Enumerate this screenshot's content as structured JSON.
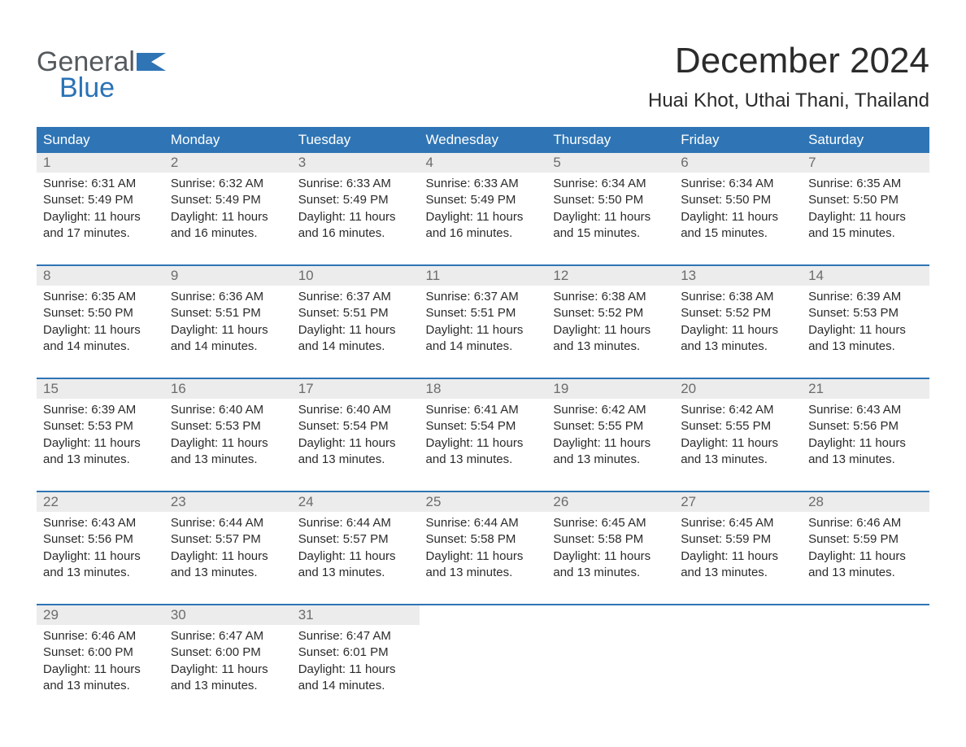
{
  "brand": {
    "general": "General",
    "blue": "Blue",
    "flag_color": "#2f75b5"
  },
  "title": {
    "month": "December 2024",
    "location": "Huai Khot, Uthai Thani, Thailand"
  },
  "colors": {
    "header_bg": "#2f75b5",
    "header_text": "#ffffff",
    "daynum_bg": "#ececec",
    "daynum_text": "#6c6c6c",
    "body_text": "#2b2b2b",
    "page_bg": "#ffffff",
    "week_border": "#2f75b5"
  },
  "day_headers": [
    "Sunday",
    "Monday",
    "Tuesday",
    "Wednesday",
    "Thursday",
    "Friday",
    "Saturday"
  ],
  "weeks": [
    [
      {
        "num": "1",
        "sunrise": "Sunrise: 6:31 AM",
        "sunset": "Sunset: 5:49 PM",
        "d1": "Daylight: 11 hours",
        "d2": "and 17 minutes."
      },
      {
        "num": "2",
        "sunrise": "Sunrise: 6:32 AM",
        "sunset": "Sunset: 5:49 PM",
        "d1": "Daylight: 11 hours",
        "d2": "and 16 minutes."
      },
      {
        "num": "3",
        "sunrise": "Sunrise: 6:33 AM",
        "sunset": "Sunset: 5:49 PM",
        "d1": "Daylight: 11 hours",
        "d2": "and 16 minutes."
      },
      {
        "num": "4",
        "sunrise": "Sunrise: 6:33 AM",
        "sunset": "Sunset: 5:49 PM",
        "d1": "Daylight: 11 hours",
        "d2": "and 16 minutes."
      },
      {
        "num": "5",
        "sunrise": "Sunrise: 6:34 AM",
        "sunset": "Sunset: 5:50 PM",
        "d1": "Daylight: 11 hours",
        "d2": "and 15 minutes."
      },
      {
        "num": "6",
        "sunrise": "Sunrise: 6:34 AM",
        "sunset": "Sunset: 5:50 PM",
        "d1": "Daylight: 11 hours",
        "d2": "and 15 minutes."
      },
      {
        "num": "7",
        "sunrise": "Sunrise: 6:35 AM",
        "sunset": "Sunset: 5:50 PM",
        "d1": "Daylight: 11 hours",
        "d2": "and 15 minutes."
      }
    ],
    [
      {
        "num": "8",
        "sunrise": "Sunrise: 6:35 AM",
        "sunset": "Sunset: 5:50 PM",
        "d1": "Daylight: 11 hours",
        "d2": "and 14 minutes."
      },
      {
        "num": "9",
        "sunrise": "Sunrise: 6:36 AM",
        "sunset": "Sunset: 5:51 PM",
        "d1": "Daylight: 11 hours",
        "d2": "and 14 minutes."
      },
      {
        "num": "10",
        "sunrise": "Sunrise: 6:37 AM",
        "sunset": "Sunset: 5:51 PM",
        "d1": "Daylight: 11 hours",
        "d2": "and 14 minutes."
      },
      {
        "num": "11",
        "sunrise": "Sunrise: 6:37 AM",
        "sunset": "Sunset: 5:51 PM",
        "d1": "Daylight: 11 hours",
        "d2": "and 14 minutes."
      },
      {
        "num": "12",
        "sunrise": "Sunrise: 6:38 AM",
        "sunset": "Sunset: 5:52 PM",
        "d1": "Daylight: 11 hours",
        "d2": "and 13 minutes."
      },
      {
        "num": "13",
        "sunrise": "Sunrise: 6:38 AM",
        "sunset": "Sunset: 5:52 PM",
        "d1": "Daylight: 11 hours",
        "d2": "and 13 minutes."
      },
      {
        "num": "14",
        "sunrise": "Sunrise: 6:39 AM",
        "sunset": "Sunset: 5:53 PM",
        "d1": "Daylight: 11 hours",
        "d2": "and 13 minutes."
      }
    ],
    [
      {
        "num": "15",
        "sunrise": "Sunrise: 6:39 AM",
        "sunset": "Sunset: 5:53 PM",
        "d1": "Daylight: 11 hours",
        "d2": "and 13 minutes."
      },
      {
        "num": "16",
        "sunrise": "Sunrise: 6:40 AM",
        "sunset": "Sunset: 5:53 PM",
        "d1": "Daylight: 11 hours",
        "d2": "and 13 minutes."
      },
      {
        "num": "17",
        "sunrise": "Sunrise: 6:40 AM",
        "sunset": "Sunset: 5:54 PM",
        "d1": "Daylight: 11 hours",
        "d2": "and 13 minutes."
      },
      {
        "num": "18",
        "sunrise": "Sunrise: 6:41 AM",
        "sunset": "Sunset: 5:54 PM",
        "d1": "Daylight: 11 hours",
        "d2": "and 13 minutes."
      },
      {
        "num": "19",
        "sunrise": "Sunrise: 6:42 AM",
        "sunset": "Sunset: 5:55 PM",
        "d1": "Daylight: 11 hours",
        "d2": "and 13 minutes."
      },
      {
        "num": "20",
        "sunrise": "Sunrise: 6:42 AM",
        "sunset": "Sunset: 5:55 PM",
        "d1": "Daylight: 11 hours",
        "d2": "and 13 minutes."
      },
      {
        "num": "21",
        "sunrise": "Sunrise: 6:43 AM",
        "sunset": "Sunset: 5:56 PM",
        "d1": "Daylight: 11 hours",
        "d2": "and 13 minutes."
      }
    ],
    [
      {
        "num": "22",
        "sunrise": "Sunrise: 6:43 AM",
        "sunset": "Sunset: 5:56 PM",
        "d1": "Daylight: 11 hours",
        "d2": "and 13 minutes."
      },
      {
        "num": "23",
        "sunrise": "Sunrise: 6:44 AM",
        "sunset": "Sunset: 5:57 PM",
        "d1": "Daylight: 11 hours",
        "d2": "and 13 minutes."
      },
      {
        "num": "24",
        "sunrise": "Sunrise: 6:44 AM",
        "sunset": "Sunset: 5:57 PM",
        "d1": "Daylight: 11 hours",
        "d2": "and 13 minutes."
      },
      {
        "num": "25",
        "sunrise": "Sunrise: 6:44 AM",
        "sunset": "Sunset: 5:58 PM",
        "d1": "Daylight: 11 hours",
        "d2": "and 13 minutes."
      },
      {
        "num": "26",
        "sunrise": "Sunrise: 6:45 AM",
        "sunset": "Sunset: 5:58 PM",
        "d1": "Daylight: 11 hours",
        "d2": "and 13 minutes."
      },
      {
        "num": "27",
        "sunrise": "Sunrise: 6:45 AM",
        "sunset": "Sunset: 5:59 PM",
        "d1": "Daylight: 11 hours",
        "d2": "and 13 minutes."
      },
      {
        "num": "28",
        "sunrise": "Sunrise: 6:46 AM",
        "sunset": "Sunset: 5:59 PM",
        "d1": "Daylight: 11 hours",
        "d2": "and 13 minutes."
      }
    ],
    [
      {
        "num": "29",
        "sunrise": "Sunrise: 6:46 AM",
        "sunset": "Sunset: 6:00 PM",
        "d1": "Daylight: 11 hours",
        "d2": "and 13 minutes."
      },
      {
        "num": "30",
        "sunrise": "Sunrise: 6:47 AM",
        "sunset": "Sunset: 6:00 PM",
        "d1": "Daylight: 11 hours",
        "d2": "and 13 minutes."
      },
      {
        "num": "31",
        "sunrise": "Sunrise: 6:47 AM",
        "sunset": "Sunset: 6:01 PM",
        "d1": "Daylight: 11 hours",
        "d2": "and 14 minutes."
      },
      null,
      null,
      null,
      null
    ]
  ]
}
